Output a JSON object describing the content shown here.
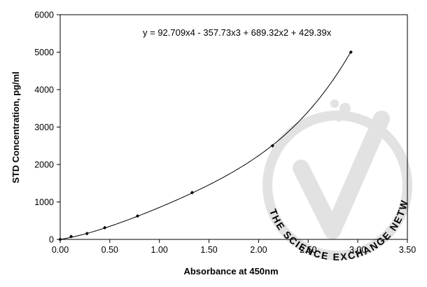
{
  "chart_data": {
    "type": "scatter",
    "equation": "y = 92.709x4 - 357.73x3 + 689.32x2 + 429.39x",
    "xlabel": "Absorbance at 450nm",
    "ylabel": "STD Concentration, pg/ml",
    "xlim": [
      0,
      3.5
    ],
    "ylim": [
      0,
      6000
    ],
    "x_ticks": [
      "0.00",
      "0.50",
      "1.00",
      "1.50",
      "2.00",
      "2.50",
      "3.00",
      "3.50"
    ],
    "y_ticks": [
      "0",
      "1000",
      "2000",
      "3000",
      "4000",
      "5000",
      "6000"
    ],
    "grid": false,
    "trendline": {
      "type": "polynomial",
      "coefficients": [
        0,
        429.39,
        689.32,
        -357.73,
        92.709
      ]
    },
    "series": [
      {
        "x": [
          0.0,
          0.11,
          0.27,
          0.45,
          0.78,
          1.33,
          2.14,
          2.93
        ],
        "y": [
          0,
          78,
          156,
          313,
          625,
          1250,
          2500,
          5000
        ]
      }
    ],
    "colors": {
      "marker": "#000000",
      "line": "#000000",
      "axis": "#000000",
      "watermark": "#e2e2e2"
    },
    "watermark": {
      "text": "THE SCIENCE EXCHANGE NETWORK"
    }
  }
}
